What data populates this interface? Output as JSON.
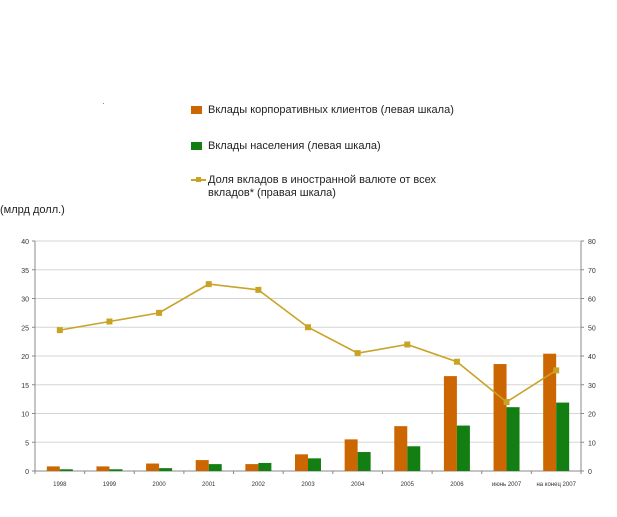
{
  "unit_label": "(млрд долл.)",
  "legend": {
    "corporate": "Вклады корпоративных клиентов (левая шкала)",
    "households": "Вклады населения (левая шкала)",
    "share_line1": "Доля вкладов в иностранной валюте от всех",
    "share_line2": "вкладов* (правая шкала)"
  },
  "colors": {
    "corporate": "#CC6600",
    "households": "#137F13",
    "share": "#C9A326",
    "axis": "#888888",
    "grid": "#D5D5D5"
  },
  "chart_data": {
    "type": "bar",
    "categories": [
      "1998",
      "1999",
      "2000",
      "2001",
      "2002",
      "2003",
      "2004",
      "2005",
      "2006",
      "июнь 2007",
      "на конец 2007"
    ],
    "series": [
      {
        "name": "Вклады корпоративных клиентов (левая шкала)",
        "type": "bar",
        "axis": "left",
        "values": [
          0.8,
          0.8,
          1.3,
          1.9,
          1.2,
          2.9,
          5.5,
          7.8,
          16.5,
          18.6,
          20.4
        ]
      },
      {
        "name": "Вклады населения (левая шкала)",
        "type": "bar",
        "axis": "left",
        "values": [
          0.3,
          0.3,
          0.5,
          1.2,
          1.4,
          2.2,
          3.3,
          4.3,
          7.9,
          11.1,
          11.9
        ]
      },
      {
        "name": "Доля вкладов в иностранной валюте от всех вкладов* (правая шкала)",
        "type": "line",
        "axis": "right",
        "values": [
          49,
          52,
          55,
          65,
          63,
          50,
          41,
          44,
          38,
          24,
          35
        ]
      }
    ],
    "y_left": {
      "min": 0,
      "max": 40,
      "ticks": [
        "0",
        "5",
        "10",
        "15",
        "20",
        "25",
        "30",
        "35",
        "40"
      ]
    },
    "y_right": {
      "min": 0,
      "max": 80,
      "ticks": [
        "0",
        "10",
        "20",
        "30",
        "40",
        "50",
        "60",
        "70",
        "80"
      ]
    },
    "x_tick_labels": [
      "1998",
      "1999",
      "2000",
      "2001",
      "2002",
      "2003",
      "2004",
      "2005",
      "2006",
      "июнь 2007",
      "на конец 2007"
    ],
    "ylabel": "(млрд долл.)",
    "grid": true,
    "legend_position": "top-center"
  }
}
